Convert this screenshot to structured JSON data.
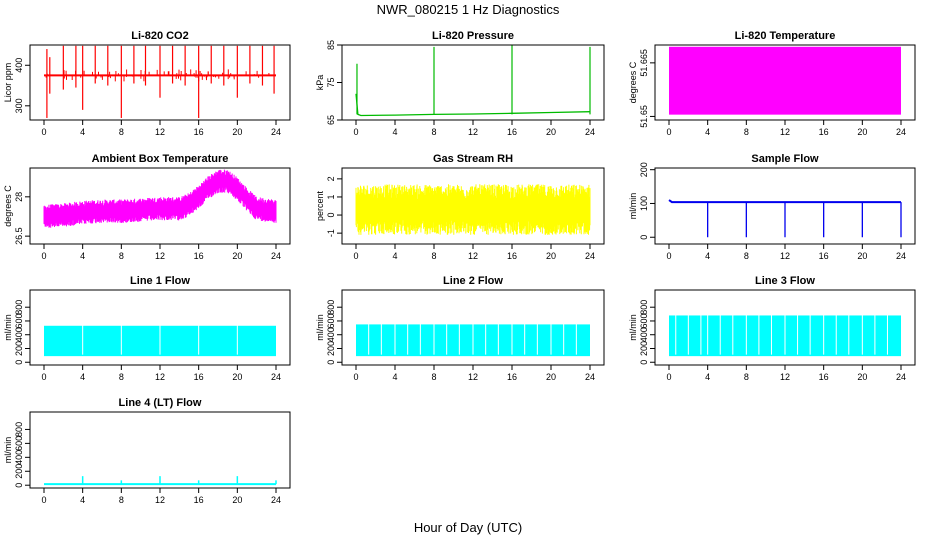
{
  "figure": {
    "title": "NWR_080215  1 Hz Diagnostics",
    "xlabel": "Hour of Day (UTC)"
  },
  "chart_data": [
    {
      "type": "line",
      "title": "Li-820 CO2",
      "ylabel": "Licor ppm",
      "color": "#ff0000",
      "xlim": [
        0,
        24
      ],
      "ylim": [
        265,
        450
      ],
      "yticks": [
        300,
        400
      ],
      "xticks": [
        0,
        4,
        8,
        12,
        16,
        20,
        24
      ],
      "series": [
        {
          "baseline": 375,
          "x": [
            0.3,
            0.6,
            2.0,
            3.3,
            4.0,
            5.3,
            6.6,
            8.0,
            9.3,
            10.5,
            12.0,
            13.3,
            14.6,
            16.0,
            17.3,
            18.6,
            20.0,
            21.3,
            22.6,
            23.8
          ],
          "peaks": [
            440,
            420,
            448,
            448,
            448,
            448,
            448,
            448,
            448,
            448,
            448,
            448,
            448,
            448,
            448,
            448,
            448,
            448,
            448,
            448
          ],
          "dips": [
            270,
            330,
            340,
            345,
            290,
            355,
            350,
            270,
            355,
            350,
            320,
            355,
            350,
            270,
            355,
            350,
            320,
            355,
            350,
            330
          ]
        }
      ]
    },
    {
      "type": "line",
      "title": "Li-820 Pressure",
      "ylabel": "kPa",
      "color": "#00bb00",
      "xlim": [
        0,
        24
      ],
      "ylim": [
        65,
        85
      ],
      "yticks": [
        65,
        75,
        85
      ],
      "xticks": [
        0,
        4,
        8,
        12,
        16,
        20,
        24
      ],
      "series": [
        {
          "x": [
            0,
            0.2,
            0.5,
            4,
            8,
            12,
            16,
            20,
            24
          ],
          "y": [
            72,
            66.5,
            66.2,
            66.3,
            66.5,
            66.6,
            66.8,
            67.0,
            67.2
          ],
          "spikes_x": [
            0.1,
            8.0,
            16.0,
            24.0
          ],
          "spikes_y": [
            80,
            84.5,
            85,
            84.5
          ]
        }
      ]
    },
    {
      "type": "area",
      "title": "Li-820 Temperature",
      "ylabel": "degrees C",
      "color": "#ff00ff",
      "xlim": [
        0,
        24
      ],
      "ylim": [
        51.649,
        51.67
      ],
      "yticks": [
        51.65,
        51.665
      ],
      "xticks": [
        0,
        4,
        8,
        12,
        16,
        20,
        24
      ],
      "series": [
        {
          "x": [
            0,
            24
          ],
          "ymin": 51.6505,
          "ymax": 51.6695
        }
      ]
    },
    {
      "type": "line",
      "title": "Ambient Box Temperature",
      "ylabel": "degrees C",
      "color": "#ff00ff",
      "xlim": [
        0,
        24
      ],
      "ylim": [
        26.2,
        29.1
      ],
      "yticks": [
        26.5,
        28.0
      ],
      "xticks": [
        0,
        4,
        8,
        12,
        16,
        20,
        24
      ],
      "series": [
        {
          "x": [
            0,
            2,
            4,
            6,
            8,
            10,
            12,
            14,
            15,
            16,
            17,
            18,
            19,
            20,
            21,
            22,
            23,
            24
          ],
          "center": [
            27.25,
            27.3,
            27.4,
            27.45,
            27.45,
            27.5,
            27.55,
            27.55,
            27.7,
            28.0,
            28.35,
            28.6,
            28.6,
            28.3,
            27.9,
            27.55,
            27.5,
            27.45
          ],
          "halfwidth": 0.45
        }
      ]
    },
    {
      "type": "line",
      "title": "Gas Stream RH",
      "ylabel": "percent",
      "color": "#ffff00",
      "xlim": [
        0,
        24
      ],
      "ylim": [
        -1.6,
        2.6
      ],
      "yticks": [
        -1,
        0,
        1,
        2
      ],
      "xticks": [
        0,
        4,
        8,
        12,
        16,
        20,
        24
      ],
      "series": [
        {
          "x": [
            0,
            24
          ],
          "center": 0.3,
          "halfwidth": 1.4,
          "max": 2.3,
          "min": -1.4
        }
      ]
    },
    {
      "type": "line",
      "title": "Sample Flow",
      "ylabel": "ml/min",
      "color": "#0000ee",
      "xlim": [
        0,
        24
      ],
      "ylim": [
        -20,
        205
      ],
      "yticks": [
        0,
        100,
        200
      ],
      "xticks": [
        0,
        4,
        8,
        12,
        16,
        20,
        24
      ],
      "series": [
        {
          "x": [
            0,
            24
          ],
          "start": 110,
          "level": 104,
          "dips_x": [
            4,
            8,
            12,
            16,
            20,
            24
          ],
          "dips_y": [
            0,
            0,
            0,
            0,
            0,
            0
          ]
        }
      ]
    },
    {
      "type": "area",
      "title": "Line 1 Flow",
      "ylabel": "ml/min",
      "color": "#00ffff",
      "xlim": [
        0,
        24
      ],
      "ylim": [
        -40,
        1050
      ],
      "yticks": [
        0,
        200,
        400,
        600,
        800
      ],
      "xticks": [
        0,
        4,
        8,
        12,
        16,
        20,
        24
      ],
      "series": [
        {
          "x": [
            0,
            24
          ],
          "ymin": 100,
          "ymax": 530,
          "gaps_x": [
            4,
            8,
            12,
            16,
            20
          ]
        }
      ]
    },
    {
      "type": "area",
      "title": "Line 2 Flow",
      "ylabel": "ml/min",
      "color": "#00ffff",
      "xlim": [
        0,
        24
      ],
      "ylim": [
        -40,
        1050
      ],
      "yticks": [
        0,
        200,
        400,
        600,
        800
      ],
      "xticks": [
        0,
        4,
        8,
        12,
        16,
        20,
        24
      ],
      "series": [
        {
          "x": [
            0,
            24
          ],
          "ymin": 100,
          "ymax": 550,
          "gaps_x": [
            1.3,
            2.6,
            4,
            5.3,
            6.6,
            8,
            9.3,
            10.6,
            12,
            13.3,
            14.6,
            16,
            17.3,
            18.6,
            20,
            21.3,
            22.6
          ]
        }
      ]
    },
    {
      "type": "area",
      "title": "Line 3 Flow",
      "ylabel": "ml/min",
      "color": "#00ffff",
      "xlim": [
        0,
        24
      ],
      "ylim": [
        -40,
        1050
      ],
      "yticks": [
        0,
        200,
        400,
        600,
        800
      ],
      "xticks": [
        0,
        4,
        8,
        12,
        16,
        20,
        24
      ],
      "series": [
        {
          "x": [
            0,
            24
          ],
          "ymin": 100,
          "ymax": 680,
          "gaps_x": [
            0.7,
            2.0,
            3.3,
            4,
            5.3,
            6.6,
            8,
            9.3,
            10.6,
            12,
            13.3,
            14.6,
            16,
            17.3,
            18.6,
            20,
            21.3,
            22.6
          ]
        }
      ]
    },
    {
      "type": "line",
      "title": "Line 4 (LT) Flow",
      "ylabel": "ml/min",
      "color": "#00ffff",
      "xlim": [
        0,
        24
      ],
      "ylim": [
        -40,
        1050
      ],
      "yticks": [
        0,
        200,
        400,
        600,
        800
      ],
      "xticks": [
        0,
        4,
        8,
        12,
        16,
        20,
        24
      ],
      "series": [
        {
          "x": [
            0,
            24
          ],
          "level": 15,
          "spikes_x": [
            4,
            8,
            12,
            16,
            20,
            24
          ],
          "spikes_y": [
            130,
            70,
            130,
            70,
            130,
            70
          ]
        }
      ]
    }
  ]
}
